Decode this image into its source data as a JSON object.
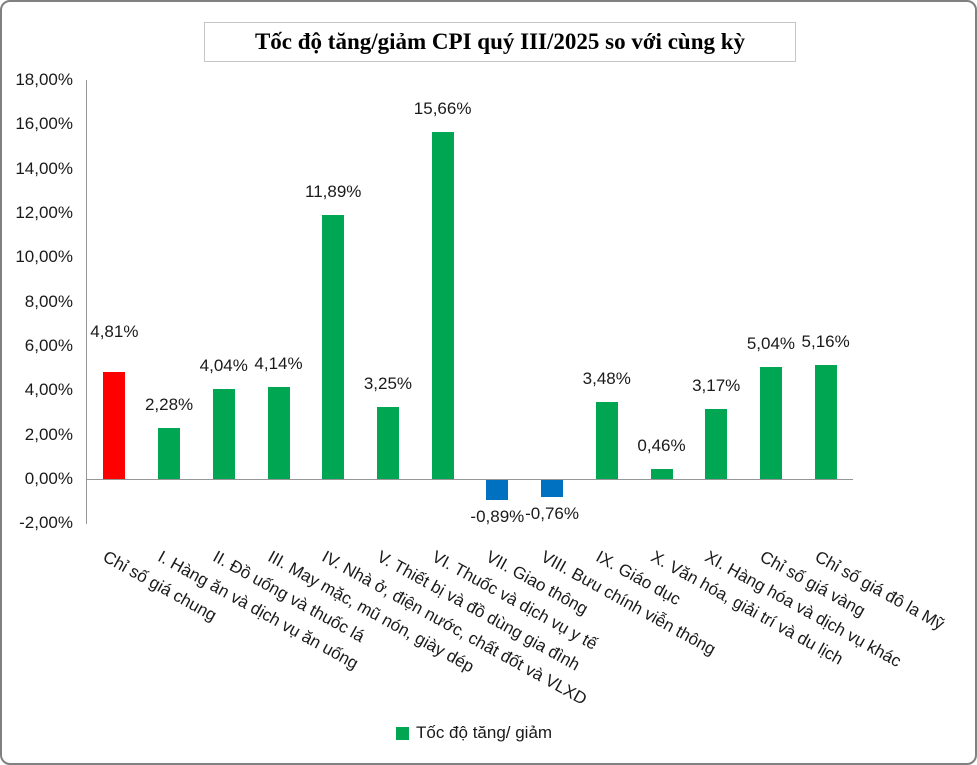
{
  "colors": {
    "window_border": "#808080",
    "title_border": "#C6C6C6",
    "axis": "#969696",
    "text": "#1A1A1A",
    "bar_red": "#FF0000",
    "bar_green": "#00A651",
    "bar_blue": "#0070C0"
  },
  "chart_data": {
    "type": "bar",
    "title": "Tốc độ tăng/giảm CPI quý III/2025 so với cùng kỳ",
    "xlabel": "",
    "ylabel": "",
    "ylim": [
      -2,
      18
    ],
    "grid": false,
    "legend": {
      "label": "Tốc độ tăng/ giảm",
      "color": "#00A651",
      "position": "bottom"
    },
    "y_ticks": [
      {
        "value": 18,
        "label": "18,00%"
      },
      {
        "value": 16,
        "label": "16,00%"
      },
      {
        "value": 14,
        "label": "14,00%"
      },
      {
        "value": 12,
        "label": "12,00%"
      },
      {
        "value": 10,
        "label": "10,00%"
      },
      {
        "value": 8,
        "label": "8,00%"
      },
      {
        "value": 6,
        "label": "6,00%"
      },
      {
        "value": 4,
        "label": "4,00%"
      },
      {
        "value": 2,
        "label": "2,00%"
      },
      {
        "value": 0,
        "label": "0,00%"
      },
      {
        "value": -2,
        "label": "-2,00%"
      }
    ],
    "bars": [
      {
        "category": "Chỉ số giá chung",
        "value": 4.81,
        "label": "4,81%",
        "color": "#FF0000"
      },
      {
        "category": "I. Hàng ăn và dịch vụ ăn uống",
        "value": 2.28,
        "label": "2,28%",
        "color": "#00A651"
      },
      {
        "category": "II. Đồ uống và thuốc lá",
        "value": 4.04,
        "label": "4,04%",
        "color": "#00A651"
      },
      {
        "category": "III. May mặc, mũ nón, giày dép",
        "value": 4.14,
        "label": "4,14%",
        "color": "#00A651"
      },
      {
        "category": "IV. Nhà ở, điện nước, chất đốt và VLXD",
        "value": 11.89,
        "label": "11,89%",
        "color": "#00A651"
      },
      {
        "category": "V. Thiết bị và đồ dùng gia đình",
        "value": 3.25,
        "label": "3,25%",
        "color": "#00A651"
      },
      {
        "category": "VI. Thuốc và dịch vụ y tế",
        "value": 15.66,
        "label": "15,66%",
        "color": "#00A651"
      },
      {
        "category": "VII. Giao thông",
        "value": -0.89,
        "label": "-0,89%",
        "color": "#0070C0"
      },
      {
        "category": "VIII. Bưu chính viễn thông",
        "value": -0.76,
        "label": "-0,76%",
        "color": "#0070C0"
      },
      {
        "category": "IX. Giáo dục",
        "value": 3.48,
        "label": "3,48%",
        "color": "#00A651"
      },
      {
        "category": "X. Văn hóa, giải trí và du lịch",
        "value": 0.46,
        "label": "0,46%",
        "color": "#00A651"
      },
      {
        "category": "XI. Hàng hóa và dịch vụ khác",
        "value": 3.17,
        "label": "3,17%",
        "color": "#00A651"
      },
      {
        "category": "Chỉ số giá vàng",
        "value": 5.04,
        "label": "5,04%",
        "color": "#00A651"
      },
      {
        "category": "Chỉ số giá đô la Mỹ",
        "value": 5.16,
        "label": "5,16%",
        "color": "#00A651"
      }
    ]
  }
}
